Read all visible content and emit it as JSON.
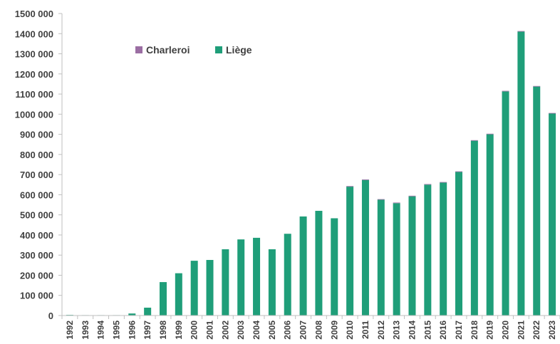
{
  "chart_data": {
    "type": "bar",
    "stacked": true,
    "categories": [
      "1992",
      "1993",
      "1994",
      "1995",
      "1996",
      "1997",
      "1998",
      "1999",
      "2000",
      "2001",
      "2002",
      "2003",
      "2004",
      "2005",
      "2006",
      "2007",
      "2008",
      "2009",
      "2010",
      "2011",
      "2012",
      "2013",
      "2014",
      "2015",
      "2016",
      "2017",
      "2018",
      "2019",
      "2020",
      "2021",
      "2022",
      "2023"
    ],
    "series": [
      {
        "name": "Charleroi",
        "color": "#9b6ea3",
        "values": [
          0,
          0,
          0,
          0,
          0,
          0,
          0,
          0,
          0,
          0,
          0,
          0,
          0,
          0,
          0,
          0,
          0,
          0,
          3000,
          3000,
          3000,
          3000,
          3000,
          3000,
          3000,
          3000,
          3000,
          3000,
          3000,
          3000,
          3000,
          3000
        ]
      },
      {
        "name": "Liège",
        "color": "#1f9e79",
        "values": [
          3000,
          2000,
          2000,
          2000,
          10000,
          39000,
          166000,
          210000,
          272000,
          276000,
          329000,
          378000,
          386000,
          329000,
          406000,
          492000,
          520000,
          483000,
          640000,
          673000,
          575000,
          558000,
          592000,
          650000,
          660000,
          713000,
          868000,
          900000,
          1113000,
          1410000,
          1137000,
          1003000
        ]
      }
    ],
    "title": "",
    "xlabel": "",
    "ylabel": "",
    "ylim": [
      0,
      1500000
    ],
    "yticks": [
      0,
      100000,
      200000,
      300000,
      400000,
      500000,
      600000,
      700000,
      800000,
      900000,
      1000000,
      1100000,
      1200000,
      1300000,
      1400000,
      1500000
    ],
    "ytick_labels": [
      "0",
      "100 000",
      "200 000",
      "300 000",
      "400 000",
      "500 000",
      "600 000",
      "700 000",
      "800 000",
      "900 000",
      "1000 000",
      "1100 000",
      "1200 000",
      "1300 000",
      "1400 000",
      "1500 000"
    ],
    "grid": false,
    "legend_position": "top-left",
    "axis_color": "#bfbfbf"
  }
}
